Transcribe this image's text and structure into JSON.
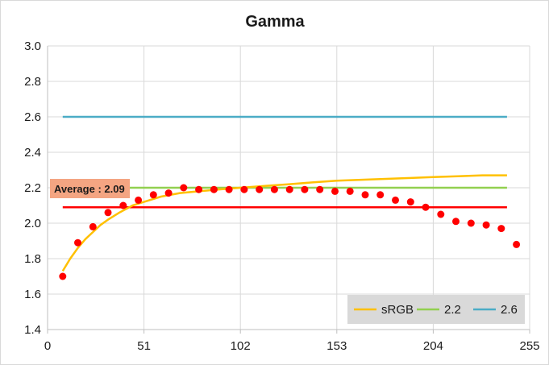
{
  "chart_data": {
    "type": "scatter",
    "title": "Gamma",
    "xlabel": "",
    "ylabel": "",
    "xlim": [
      0,
      255
    ],
    "ylim": [
      1.4,
      3.0
    ],
    "xticks": [
      "0",
      "51",
      "102",
      "153",
      "204",
      "255"
    ],
    "yticks": [
      "1.4",
      "1.6",
      "1.8",
      "2.0",
      "2.2",
      "2.4",
      "2.6",
      "2.8",
      "3.0"
    ],
    "grid": true,
    "legend_position": "bottom-right",
    "annotation": "Average : 2.09",
    "average_value": 2.09,
    "series": [
      {
        "name": "sRGB",
        "kind": "line",
        "color": "#ffc000",
        "x": [
          8,
          12,
          16,
          20,
          24,
          28,
          32,
          38,
          45,
          51,
          60,
          70,
          80,
          90,
          102,
          115,
          128,
          140,
          153,
          166,
          179,
          192,
          204,
          217,
          230,
          243
        ],
        "values": [
          1.73,
          1.8,
          1.86,
          1.91,
          1.95,
          1.99,
          2.02,
          2.06,
          2.1,
          2.12,
          2.15,
          2.17,
          2.18,
          2.19,
          2.2,
          2.21,
          2.22,
          2.23,
          2.24,
          2.245,
          2.25,
          2.255,
          2.26,
          2.265,
          2.27,
          2.27
        ]
      },
      {
        "name": "2.2",
        "kind": "line",
        "color": "#92d050",
        "x": [
          8,
          243
        ],
        "values": [
          2.2,
          2.2
        ]
      },
      {
        "name": "2.6",
        "kind": "line",
        "color": "#4bacc6",
        "x": [
          8,
          243
        ],
        "values": [
          2.6,
          2.6
        ]
      },
      {
        "kind": "line",
        "color": "#ff0000",
        "x": [
          8,
          243
        ],
        "values": [
          2.09,
          2.09
        ]
      },
      {
        "kind": "scatter",
        "color": "#ff0000",
        "x": [
          8,
          16,
          24,
          32,
          40,
          48,
          56,
          64,
          72,
          80,
          88,
          96,
          104,
          112,
          120,
          128,
          136,
          144,
          152,
          160,
          168,
          176,
          184,
          192,
          200,
          208,
          216,
          224,
          232,
          240,
          248
        ],
        "values": [
          1.7,
          1.89,
          1.98,
          2.06,
          2.1,
          2.13,
          2.16,
          2.17,
          2.2,
          2.19,
          2.19,
          2.19,
          2.19,
          2.19,
          2.19,
          2.19,
          2.19,
          2.19,
          2.18,
          2.18,
          2.16,
          2.16,
          2.13,
          2.12,
          2.09,
          2.05,
          2.01,
          2.0,
          1.99,
          1.97,
          1.88
        ]
      }
    ],
    "legend": [
      {
        "label": "sRGB",
        "color": "#ffc000"
      },
      {
        "label": "2.2",
        "color": "#92d050"
      },
      {
        "label": "2.6",
        "color": "#4bacc6"
      }
    ]
  }
}
